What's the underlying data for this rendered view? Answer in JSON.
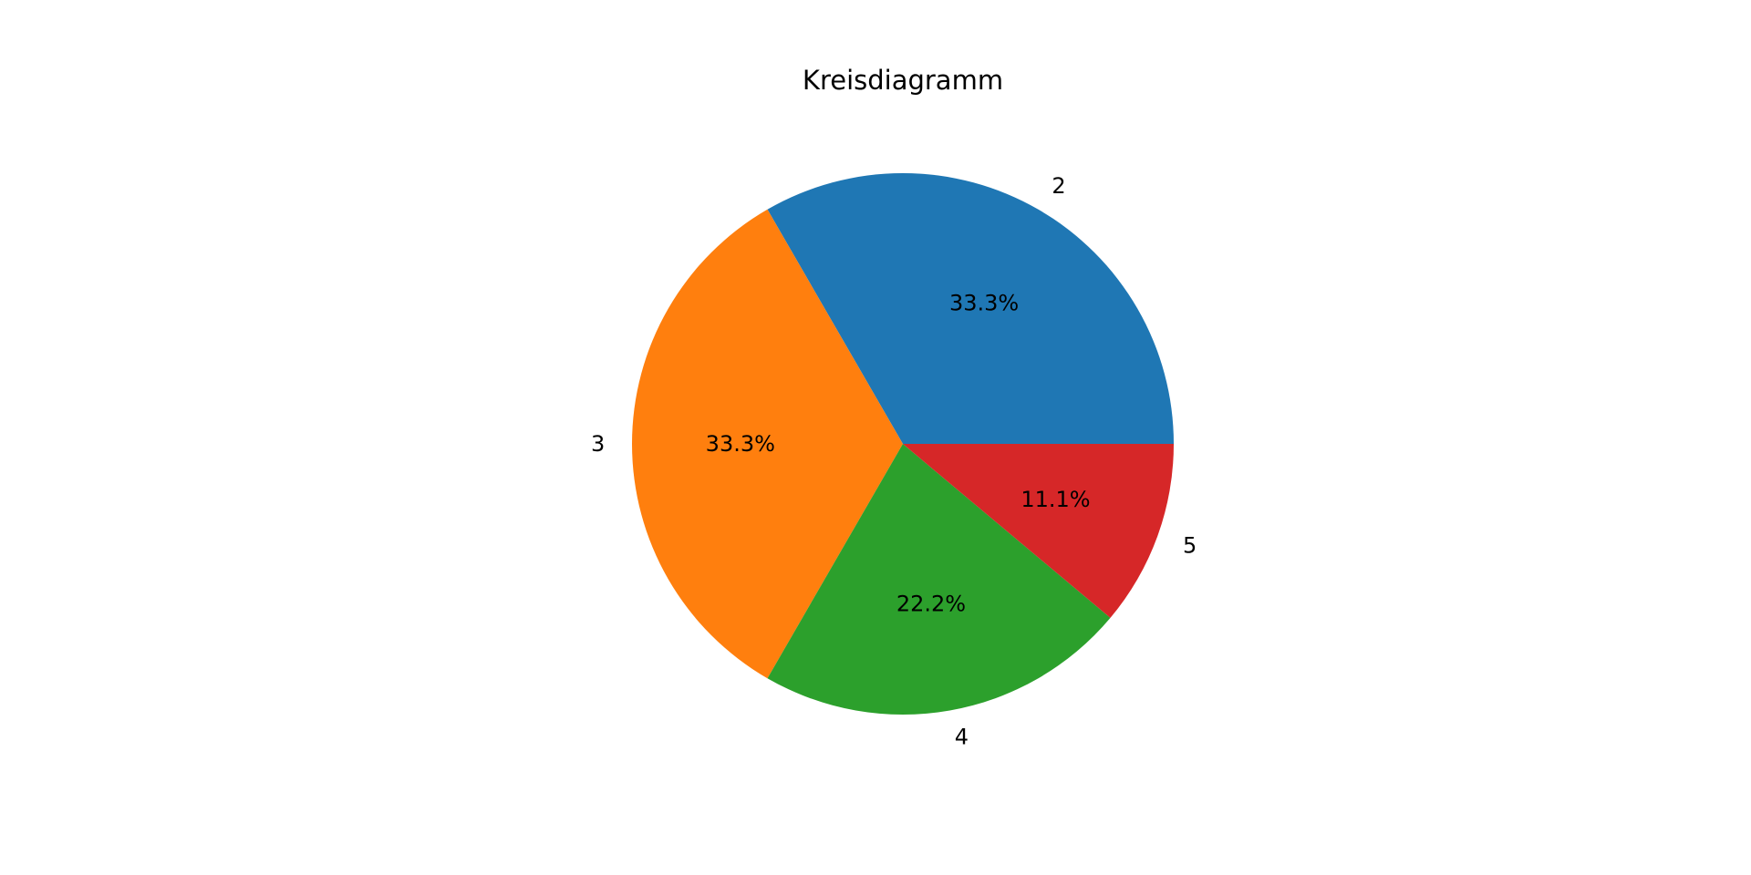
{
  "chart_data": {
    "type": "pie",
    "title": "Kreisdiagramm",
    "categories": [
      "2",
      "3",
      "4",
      "5"
    ],
    "values": [
      3,
      3,
      2,
      1
    ],
    "percent_labels": [
      "33.3%",
      "33.3%",
      "22.2%",
      "11.1%"
    ],
    "colors": [
      "#1f77b4",
      "#ff7f0e",
      "#2ca02c",
      "#d62728"
    ],
    "start_angle_deg": 0,
    "direction": "counterclockwise",
    "legend": "none"
  }
}
